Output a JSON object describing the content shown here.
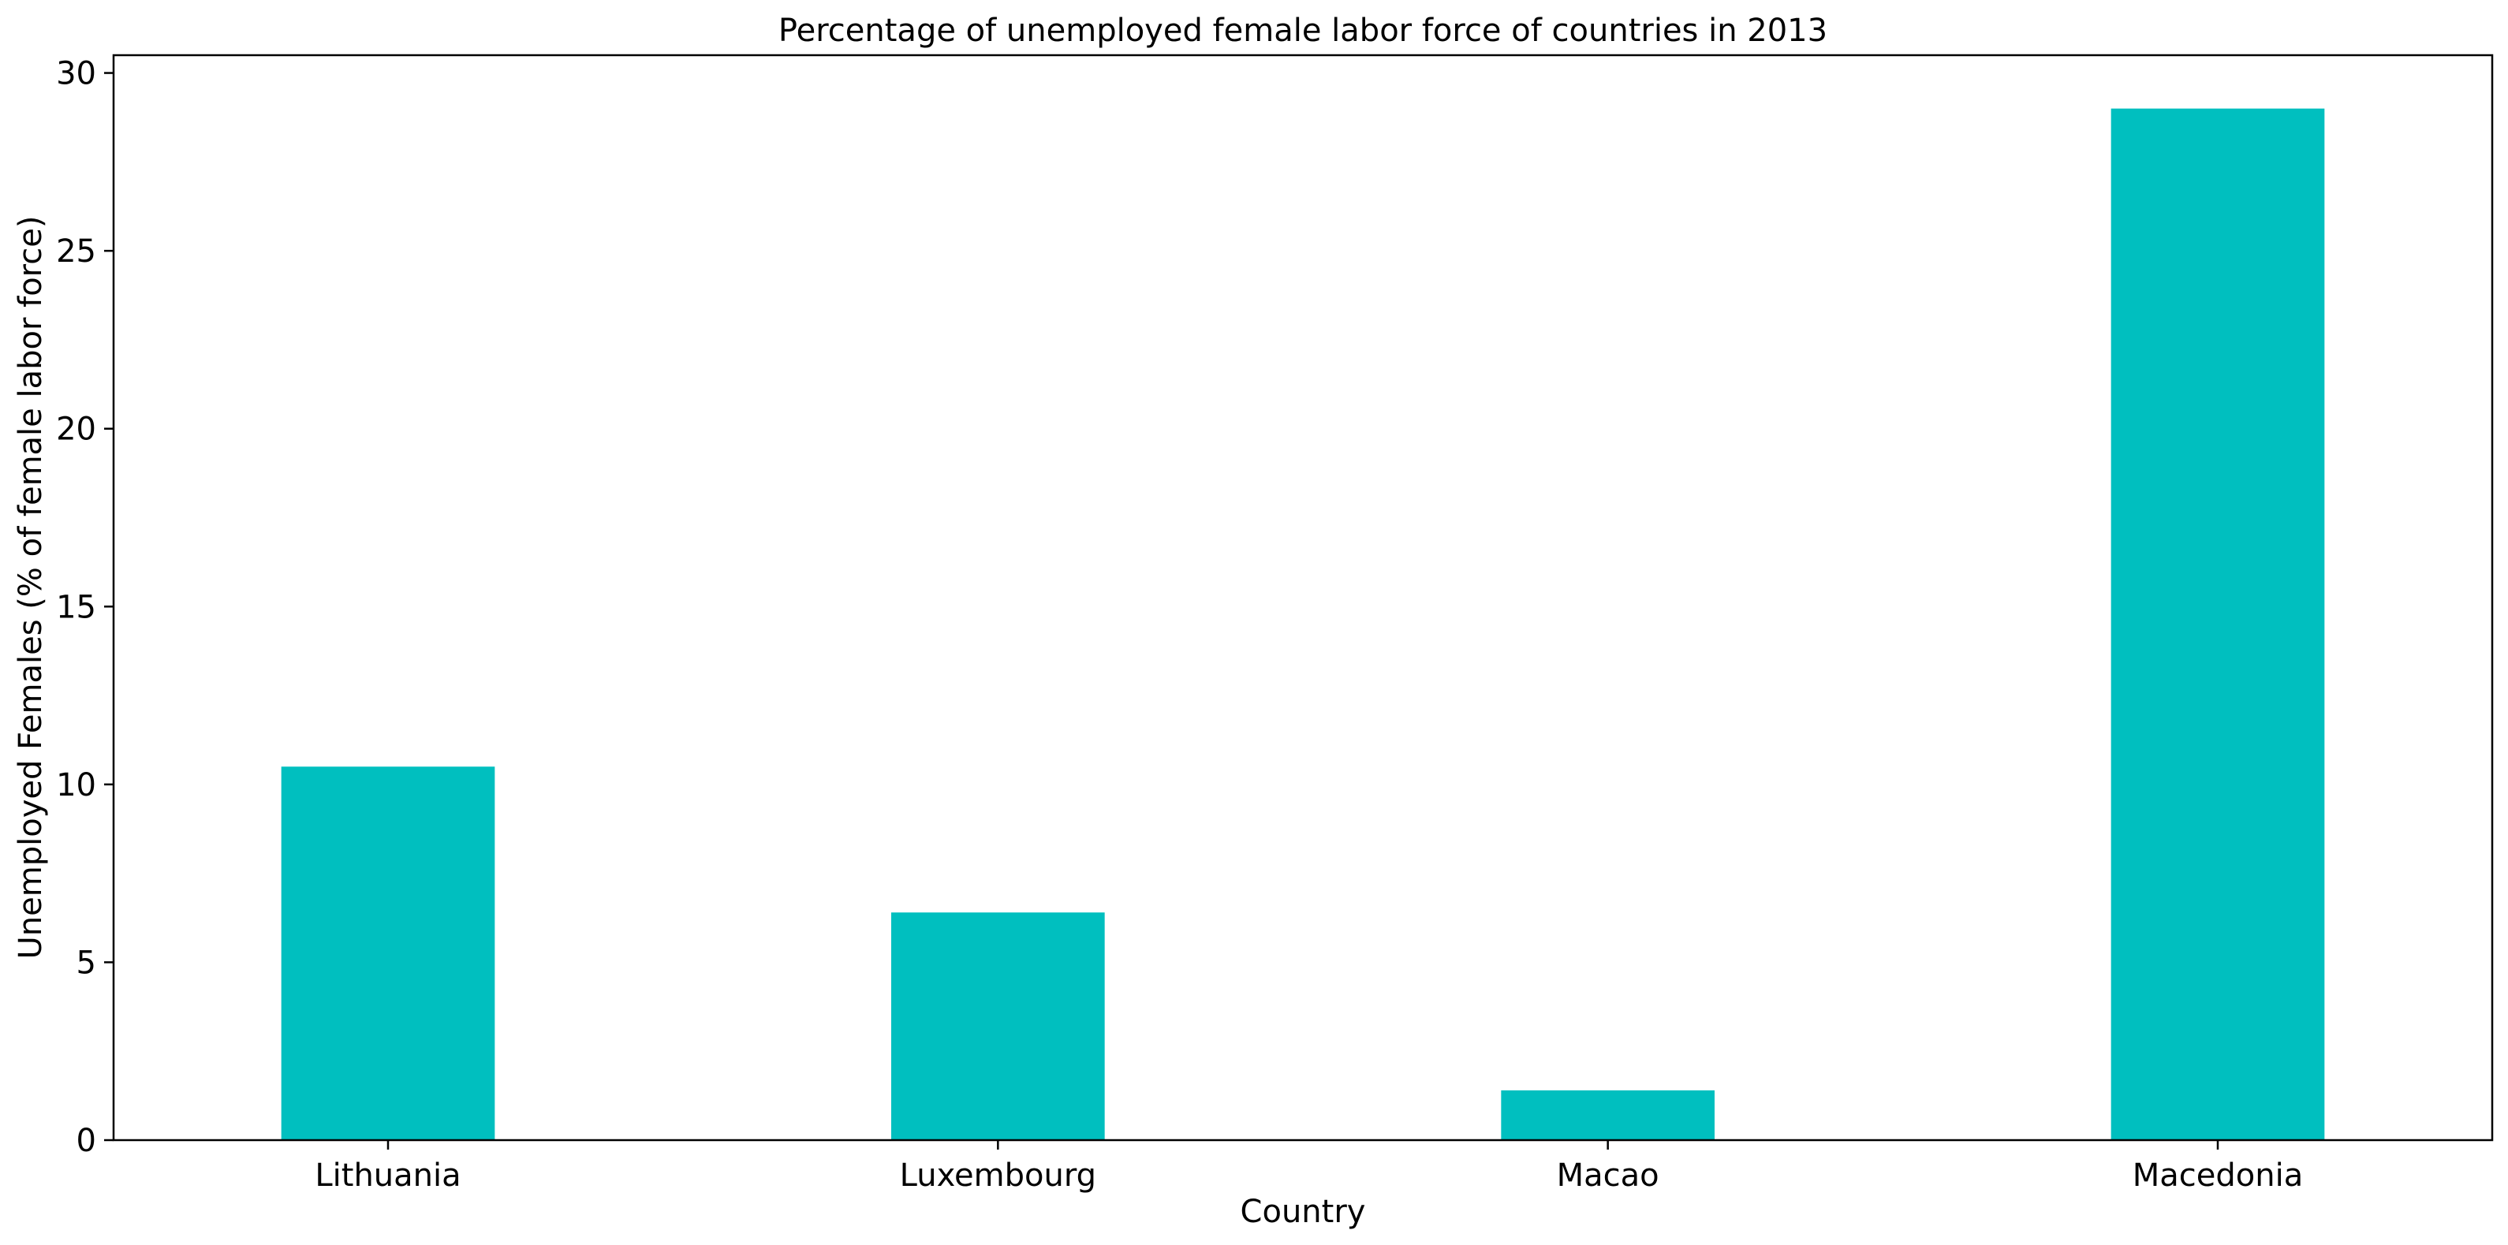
{
  "chart_data": {
    "type": "bar",
    "title": "Percentage of unemployed female labor force of countries in 2013",
    "xlabel": "Country",
    "ylabel": "Unemployed Females (% of female labor force)",
    "categories": [
      "Lithuania",
      "Luxembourg",
      "Macao",
      "Macedonia"
    ],
    "values": [
      10.5,
      6.4,
      1.4,
      29.0
    ],
    "ylim": [
      0,
      30.5
    ],
    "yticks": [
      0,
      5,
      10,
      15,
      20,
      25,
      30
    ],
    "bar_color": "#00BFBF",
    "grid": false,
    "legend": "none"
  }
}
